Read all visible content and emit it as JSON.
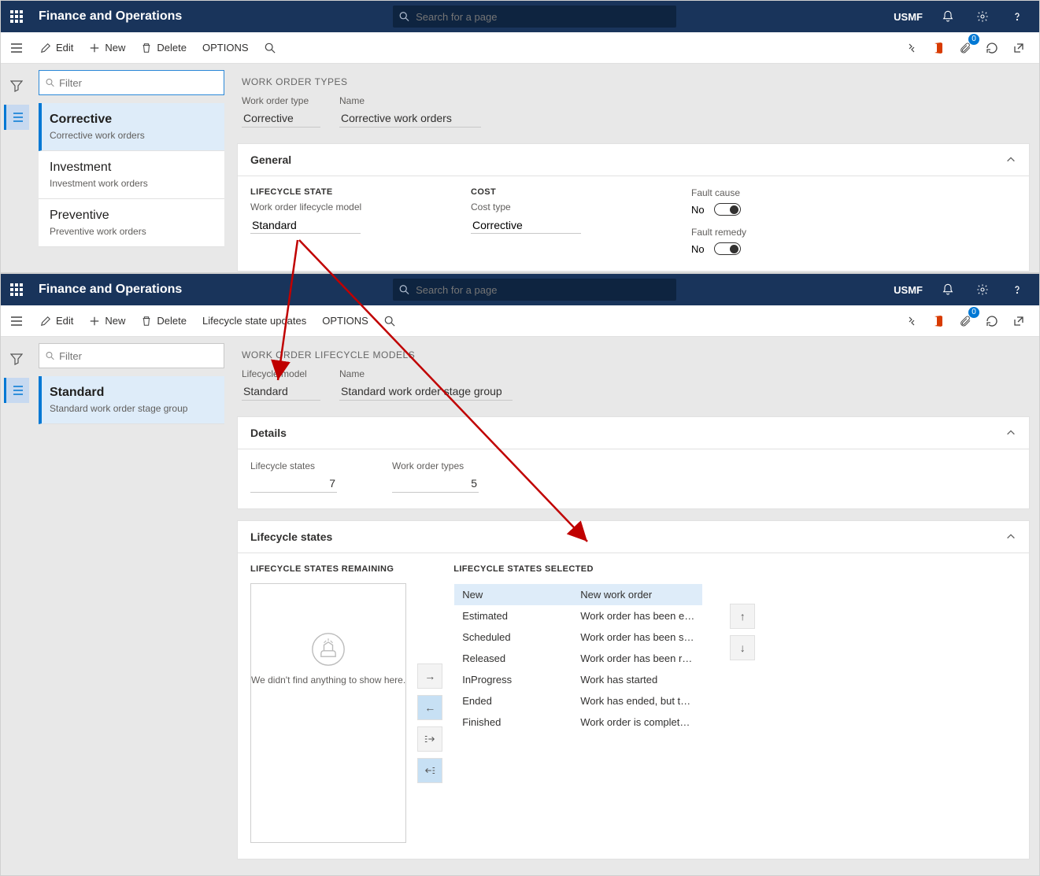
{
  "colors": {
    "topbar_bg": "#19345b",
    "accent": "#0078d4",
    "selected_bg": "#deecf9",
    "arrow": "#c00000"
  },
  "common": {
    "app_title": "Finance and Operations",
    "search_placeholder": "Search for a page",
    "company": "USMF"
  },
  "top_actions": {
    "edit": "Edit",
    "new": "New",
    "delete": "Delete",
    "options": "OPTIONS",
    "lifecycle_updates": "Lifecycle state updates"
  },
  "win1": {
    "filter_placeholder": "Filter",
    "nav": [
      {
        "title": "Corrective",
        "sub": "Corrective work orders",
        "selected": true
      },
      {
        "title": "Investment",
        "sub": "Investment work orders",
        "selected": false
      },
      {
        "title": "Preventive",
        "sub": "Preventive work orders",
        "selected": false
      }
    ],
    "page_title": "WORK ORDER TYPES",
    "header_fields": {
      "type_label": "Work order type",
      "type_value": "Corrective",
      "name_label": "Name",
      "name_value": "Corrective work orders"
    },
    "general": {
      "title": "General",
      "lifecycle_heading": "LIFECYCLE STATE",
      "lifecycle_label": "Work order lifecycle model",
      "lifecycle_value": "Standard",
      "cost_heading": "COST",
      "cost_label": "Cost type",
      "cost_value": "Corrective",
      "fault_cause_label": "Fault cause",
      "fault_cause_value": "No",
      "fault_remedy_label": "Fault remedy",
      "fault_remedy_value": "No"
    }
  },
  "win2": {
    "filter_placeholder": "Filter",
    "nav": [
      {
        "title": "Standard",
        "sub": "Standard work order stage group",
        "selected": true
      }
    ],
    "page_title": "WORK ORDER LIFECYCLE MODELS",
    "header_fields": {
      "model_label": "Lifecycle model",
      "model_value": "Standard",
      "name_label": "Name",
      "name_value": "Standard work order stage group"
    },
    "details": {
      "title": "Details",
      "states_label": "Lifecycle states",
      "states_value": "7",
      "types_label": "Work order types",
      "types_value": "5"
    },
    "lifecycles": {
      "title": "Lifecycle states",
      "remaining_heading": "LIFECYCLE STATES REMAINING",
      "remaining_empty": "We didn't find anything to show here.",
      "selected_heading": "LIFECYCLE STATES SELECTED",
      "selected": [
        {
          "name": "New",
          "desc": "New work order",
          "sel": true
        },
        {
          "name": "Estimated",
          "desc": "Work order has been e…",
          "sel": false
        },
        {
          "name": "Scheduled",
          "desc": "Work order has been s…",
          "sel": false
        },
        {
          "name": "Released",
          "desc": "Work order has been r…",
          "sel": false
        },
        {
          "name": "InProgress",
          "desc": "Work has started",
          "sel": false
        },
        {
          "name": "Ended",
          "desc": "Work has ended, but t…",
          "sel": false
        },
        {
          "name": "Finished",
          "desc": "Work order is complet…",
          "sel": false
        }
      ]
    }
  },
  "notification_badge": "0"
}
